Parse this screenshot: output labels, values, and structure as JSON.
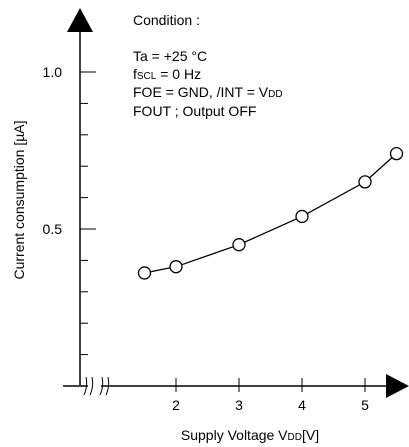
{
  "chart_data": {
    "type": "line",
    "title": "",
    "xlabel_main": "Supply Voltage V",
    "xlabel_sub": "DD",
    "xlabel_tail": "[V]",
    "ylabel": "Current consumption [µA]",
    "x_ticks": [
      "2",
      "3",
      "4",
      "5"
    ],
    "y_ticks": [
      "0.5",
      "1.0"
    ],
    "xlim": [
      1.0,
      5.6
    ],
    "ylim": [
      0.0,
      1.2
    ],
    "grid": false,
    "axis_break_on_x": true,
    "markers": "open-circle",
    "series": [
      {
        "x": [
          1.5,
          2.0,
          3.0,
          4.0,
          5.0,
          5.5
        ],
        "y": [
          0.36,
          0.38,
          0.45,
          0.54,
          0.65,
          0.74
        ]
      }
    ],
    "annotation": {
      "heading": "Condition :",
      "line1": "Ta = +25 °C",
      "line2_main": "f",
      "line2_sub": "SCL",
      "line2_tail": " = 0 Hz",
      "line3_main": "FOE = GND,  /INT = V",
      "line3_sub": "DD",
      "line4": "FOUT ; Output OFF"
    }
  },
  "colors": {
    "line": "#000000",
    "marker_fill": "#ffffff",
    "text": "#000000"
  }
}
